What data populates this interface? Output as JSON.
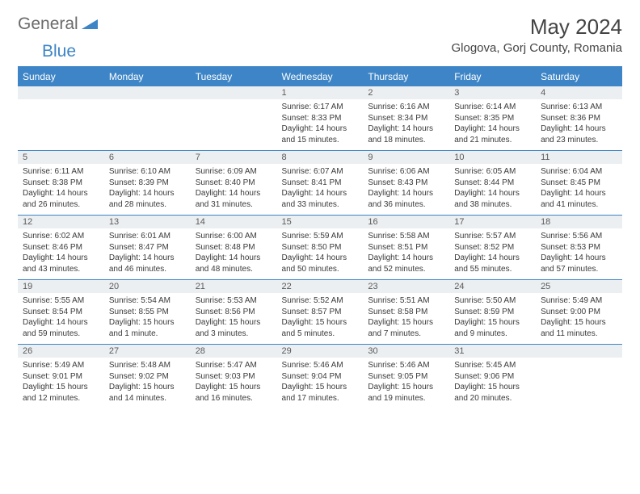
{
  "logo": {
    "general": "General",
    "blue": "Blue"
  },
  "title": "May 2024",
  "location": "Glogova, Gorj County, Romania",
  "colors": {
    "header_bg": "#3d85c6",
    "header_text": "#ffffff",
    "daynum_bg": "#eceff1",
    "border": "#3d85c6",
    "text": "#3a3a3a",
    "logo_gray": "#6a6a6a",
    "logo_blue": "#3d85c6"
  },
  "weekdays": [
    "Sunday",
    "Monday",
    "Tuesday",
    "Wednesday",
    "Thursday",
    "Friday",
    "Saturday"
  ],
  "weeks": [
    [
      null,
      null,
      null,
      {
        "n": "1",
        "sr": "6:17 AM",
        "ss": "8:33 PM",
        "dl": "14 hours and 15 minutes."
      },
      {
        "n": "2",
        "sr": "6:16 AM",
        "ss": "8:34 PM",
        "dl": "14 hours and 18 minutes."
      },
      {
        "n": "3",
        "sr": "6:14 AM",
        "ss": "8:35 PM",
        "dl": "14 hours and 21 minutes."
      },
      {
        "n": "4",
        "sr": "6:13 AM",
        "ss": "8:36 PM",
        "dl": "14 hours and 23 minutes."
      }
    ],
    [
      {
        "n": "5",
        "sr": "6:11 AM",
        "ss": "8:38 PM",
        "dl": "14 hours and 26 minutes."
      },
      {
        "n": "6",
        "sr": "6:10 AM",
        "ss": "8:39 PM",
        "dl": "14 hours and 28 minutes."
      },
      {
        "n": "7",
        "sr": "6:09 AM",
        "ss": "8:40 PM",
        "dl": "14 hours and 31 minutes."
      },
      {
        "n": "8",
        "sr": "6:07 AM",
        "ss": "8:41 PM",
        "dl": "14 hours and 33 minutes."
      },
      {
        "n": "9",
        "sr": "6:06 AM",
        "ss": "8:43 PM",
        "dl": "14 hours and 36 minutes."
      },
      {
        "n": "10",
        "sr": "6:05 AM",
        "ss": "8:44 PM",
        "dl": "14 hours and 38 minutes."
      },
      {
        "n": "11",
        "sr": "6:04 AM",
        "ss": "8:45 PM",
        "dl": "14 hours and 41 minutes."
      }
    ],
    [
      {
        "n": "12",
        "sr": "6:02 AM",
        "ss": "8:46 PM",
        "dl": "14 hours and 43 minutes."
      },
      {
        "n": "13",
        "sr": "6:01 AM",
        "ss": "8:47 PM",
        "dl": "14 hours and 46 minutes."
      },
      {
        "n": "14",
        "sr": "6:00 AM",
        "ss": "8:48 PM",
        "dl": "14 hours and 48 minutes."
      },
      {
        "n": "15",
        "sr": "5:59 AM",
        "ss": "8:50 PM",
        "dl": "14 hours and 50 minutes."
      },
      {
        "n": "16",
        "sr": "5:58 AM",
        "ss": "8:51 PM",
        "dl": "14 hours and 52 minutes."
      },
      {
        "n": "17",
        "sr": "5:57 AM",
        "ss": "8:52 PM",
        "dl": "14 hours and 55 minutes."
      },
      {
        "n": "18",
        "sr": "5:56 AM",
        "ss": "8:53 PM",
        "dl": "14 hours and 57 minutes."
      }
    ],
    [
      {
        "n": "19",
        "sr": "5:55 AM",
        "ss": "8:54 PM",
        "dl": "14 hours and 59 minutes."
      },
      {
        "n": "20",
        "sr": "5:54 AM",
        "ss": "8:55 PM",
        "dl": "15 hours and 1 minute."
      },
      {
        "n": "21",
        "sr": "5:53 AM",
        "ss": "8:56 PM",
        "dl": "15 hours and 3 minutes."
      },
      {
        "n": "22",
        "sr": "5:52 AM",
        "ss": "8:57 PM",
        "dl": "15 hours and 5 minutes."
      },
      {
        "n": "23",
        "sr": "5:51 AM",
        "ss": "8:58 PM",
        "dl": "15 hours and 7 minutes."
      },
      {
        "n": "24",
        "sr": "5:50 AM",
        "ss": "8:59 PM",
        "dl": "15 hours and 9 minutes."
      },
      {
        "n": "25",
        "sr": "5:49 AM",
        "ss": "9:00 PM",
        "dl": "15 hours and 11 minutes."
      }
    ],
    [
      {
        "n": "26",
        "sr": "5:49 AM",
        "ss": "9:01 PM",
        "dl": "15 hours and 12 minutes."
      },
      {
        "n": "27",
        "sr": "5:48 AM",
        "ss": "9:02 PM",
        "dl": "15 hours and 14 minutes."
      },
      {
        "n": "28",
        "sr": "5:47 AM",
        "ss": "9:03 PM",
        "dl": "15 hours and 16 minutes."
      },
      {
        "n": "29",
        "sr": "5:46 AM",
        "ss": "9:04 PM",
        "dl": "15 hours and 17 minutes."
      },
      {
        "n": "30",
        "sr": "5:46 AM",
        "ss": "9:05 PM",
        "dl": "15 hours and 19 minutes."
      },
      {
        "n": "31",
        "sr": "5:45 AM",
        "ss": "9:06 PM",
        "dl": "15 hours and 20 minutes."
      },
      null
    ]
  ],
  "labels": {
    "sunrise": "Sunrise:",
    "sunset": "Sunset:",
    "daylight": "Daylight:"
  }
}
